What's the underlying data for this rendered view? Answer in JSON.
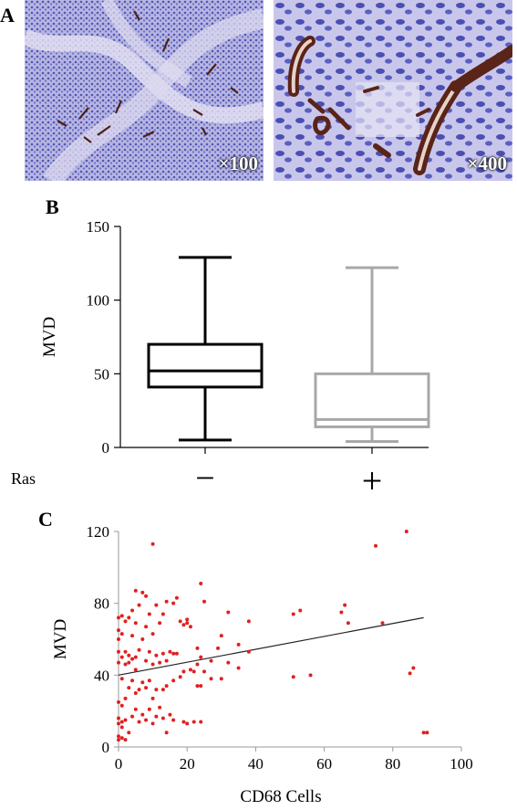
{
  "panels": {
    "A": {
      "letter": "A",
      "images": [
        {
          "magnification": "×100"
        },
        {
          "magnification": "×400"
        }
      ]
    },
    "B": {
      "letter": "B"
    },
    "C": {
      "letter": "C"
    }
  },
  "colors": {
    "tissue_bg": "#b9b7e4",
    "nuclei": "#4b4fb0",
    "vessel": "#5a2418",
    "box_neg": "#000000",
    "box_pos": "#a8a8a8",
    "scatter_point": "#e02020",
    "trend_line": "#222222"
  },
  "chart_data": [
    {
      "type": "box",
      "ylabel": "MVD",
      "xlabel": "Ras",
      "ylim": [
        0,
        150
      ],
      "yticks": [
        0,
        50,
        100,
        150
      ],
      "categories": [
        "−",
        "+"
      ],
      "boxes": [
        {
          "category": "−",
          "min": 5,
          "q1": 41,
          "median": 52,
          "q3": 70,
          "max": 129,
          "color": "#000000"
        },
        {
          "category": "+",
          "min": 4,
          "q1": 14,
          "median": 19,
          "q3": 50,
          "max": 122,
          "color": "#a8a8a8"
        }
      ],
      "grid": false
    },
    {
      "type": "scatter",
      "xlabel": "CD68 Cells",
      "ylabel": "MVD",
      "xlim": [
        0,
        100
      ],
      "ylim": [
        0,
        120
      ],
      "xticks": [
        0,
        20,
        40,
        60,
        80,
        100
      ],
      "yticks": [
        0,
        40,
        80,
        120
      ],
      "trend_line": {
        "x": [
          0,
          89
        ],
        "y": [
          40,
          72
        ]
      },
      "points": [
        [
          0,
          4
        ],
        [
          0,
          6
        ],
        [
          0,
          13
        ],
        [
          0,
          16
        ],
        [
          0,
          25
        ],
        [
          0,
          47
        ],
        [
          0,
          53
        ],
        [
          0,
          60
        ],
        [
          0,
          65
        ],
        [
          0,
          72
        ],
        [
          1,
          5
        ],
        [
          1,
          11
        ],
        [
          1,
          14
        ],
        [
          1,
          23
        ],
        [
          1,
          38
        ],
        [
          1,
          50
        ],
        [
          1,
          63
        ],
        [
          1,
          73
        ],
        [
          2,
          4
        ],
        [
          2,
          15
        ],
        [
          2,
          27
        ],
        [
          2,
          46
        ],
        [
          2,
          53
        ],
        [
          2,
          70
        ],
        [
          3,
          8
        ],
        [
          3,
          33
        ],
        [
          3,
          47
        ],
        [
          3,
          51
        ],
        [
          3,
          72
        ],
        [
          4,
          17
        ],
        [
          4,
          37
        ],
        [
          4,
          49
        ],
        [
          4,
          62
        ],
        [
          4,
          76
        ],
        [
          5,
          21
        ],
        [
          5,
          30
        ],
        [
          5,
          43
        ],
        [
          5,
          50
        ],
        [
          5,
          69
        ],
        [
          5,
          87
        ],
        [
          6,
          14
        ],
        [
          6,
          32
        ],
        [
          6,
          54
        ],
        [
          6,
          79
        ],
        [
          7,
          18
        ],
        [
          7,
          36
        ],
        [
          7,
          60
        ],
        [
          7,
          86
        ],
        [
          8,
          15
        ],
        [
          8,
          33
        ],
        [
          8,
          48
        ],
        [
          8,
          67
        ],
        [
          8,
          84
        ],
        [
          9,
          21
        ],
        [
          9,
          37
        ],
        [
          9,
          53
        ],
        [
          9,
          74
        ],
        [
          10,
          13
        ],
        [
          10,
          27
        ],
        [
          10,
          46
        ],
        [
          10,
          63
        ],
        [
          10,
          113
        ],
        [
          11,
          17
        ],
        [
          11,
          32
        ],
        [
          11,
          51
        ],
        [
          11,
          79
        ],
        [
          12,
          22
        ],
        [
          12,
          47
        ],
        [
          12,
          69
        ],
        [
          13,
          16
        ],
        [
          13,
          32
        ],
        [
          13,
          52
        ],
        [
          13,
          74
        ],
        [
          14,
          8
        ],
        [
          14,
          34
        ],
        [
          14,
          48
        ],
        [
          14,
          81
        ],
        [
          15,
          18
        ],
        [
          15,
          53
        ],
        [
          16,
          15
        ],
        [
          16,
          37
        ],
        [
          16,
          52
        ],
        [
          16,
          80
        ],
        [
          17,
          52
        ],
        [
          17,
          83
        ],
        [
          18,
          39
        ],
        [
          18,
          70
        ],
        [
          19,
          14
        ],
        [
          19,
          42
        ],
        [
          19,
          68
        ],
        [
          20,
          13
        ],
        [
          20,
          69
        ],
        [
          20,
          71
        ],
        [
          21,
          43
        ],
        [
          21,
          67
        ],
        [
          22,
          14
        ],
        [
          22,
          42
        ],
        [
          23,
          34
        ],
        [
          23,
          46
        ],
        [
          23,
          55
        ],
        [
          24,
          14
        ],
        [
          24,
          34
        ],
        [
          24,
          50
        ],
        [
          24,
          91
        ],
        [
          25,
          42
        ],
        [
          25,
          81
        ],
        [
          27,
          38
        ],
        [
          27,
          48
        ],
        [
          29,
          55
        ],
        [
          30,
          38
        ],
        [
          30,
          62
        ],
        [
          32,
          47
        ],
        [
          32,
          75
        ],
        [
          35,
          44
        ],
        [
          35,
          57
        ],
        [
          38,
          53
        ],
        [
          38,
          70
        ],
        [
          51,
          39
        ],
        [
          51,
          74
        ],
        [
          53,
          76
        ],
        [
          56,
          40
        ],
        [
          65,
          75
        ],
        [
          66,
          79
        ],
        [
          67,
          69
        ],
        [
          75,
          112
        ],
        [
          77,
          69
        ],
        [
          84,
          120
        ],
        [
          85,
          41
        ],
        [
          86,
          44
        ],
        [
          89,
          8
        ],
        [
          90,
          8
        ]
      ]
    }
  ]
}
